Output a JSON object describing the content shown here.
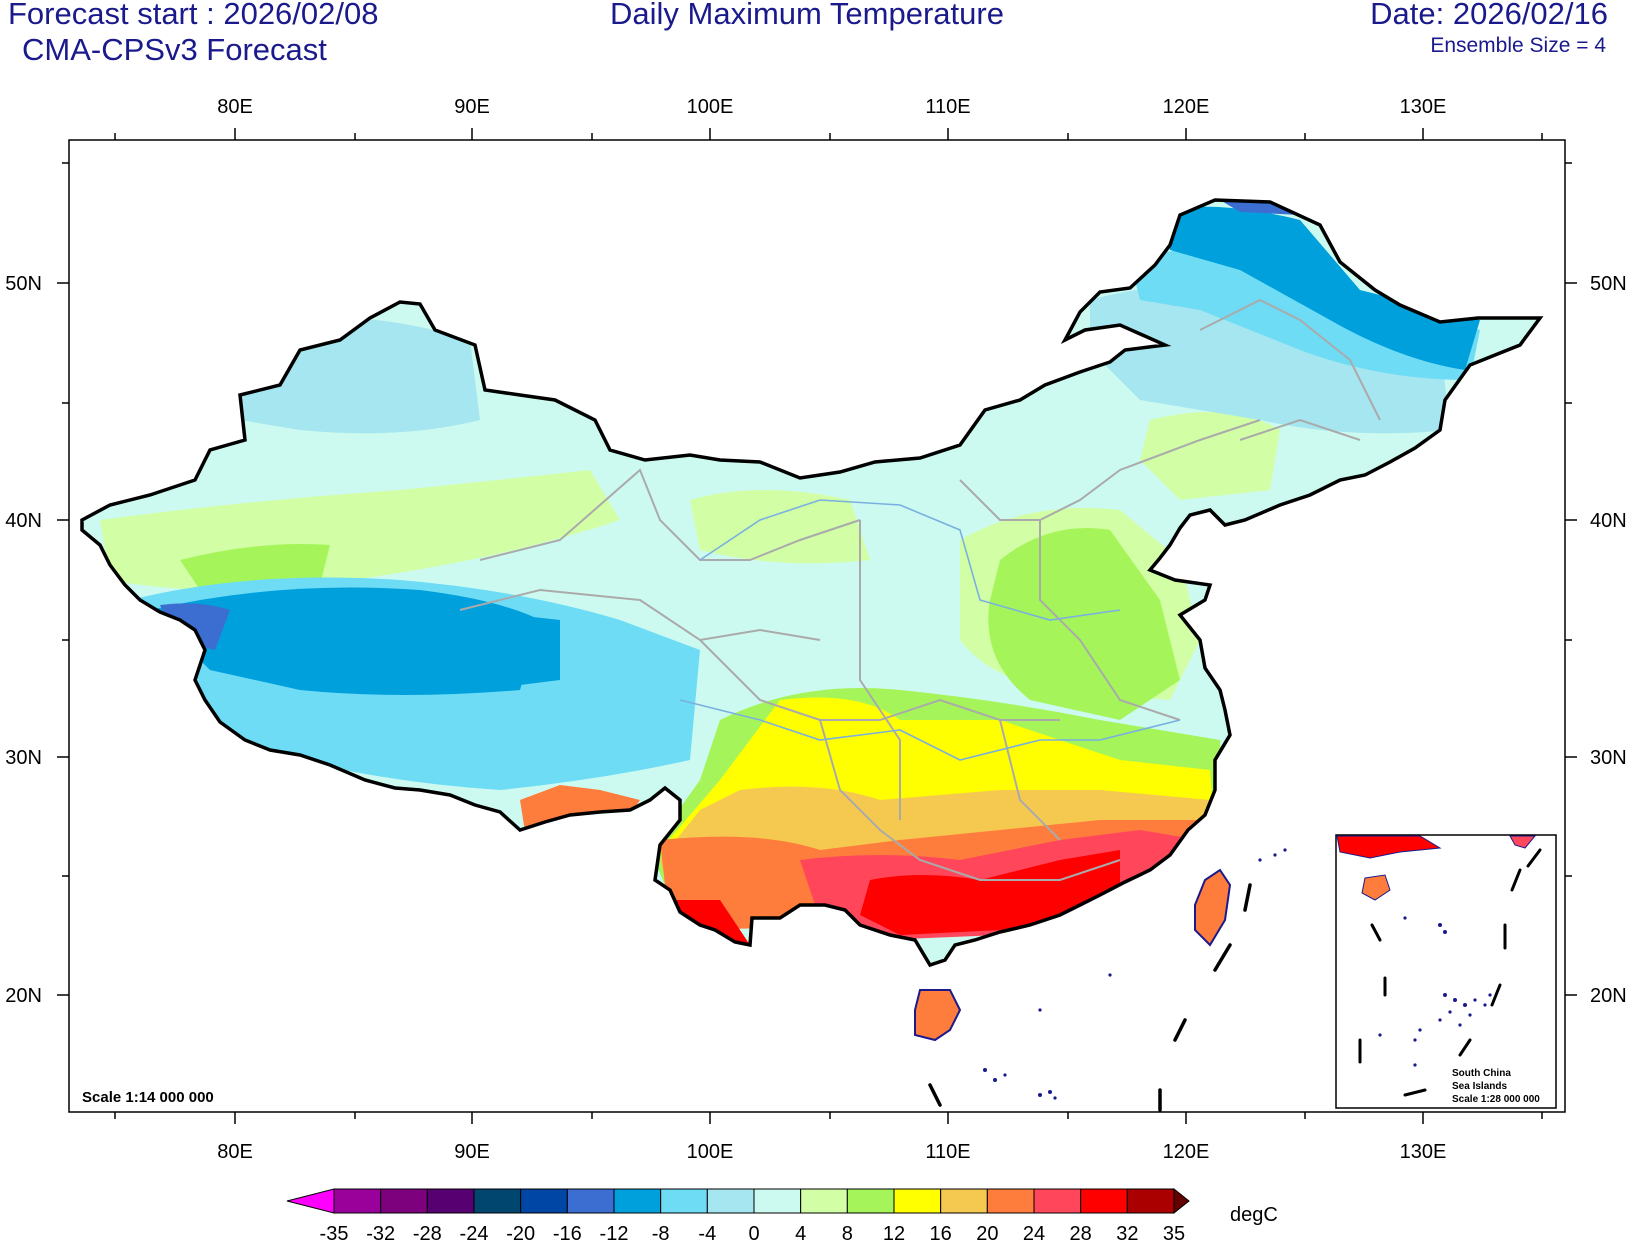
{
  "header": {
    "forecast_start": "Forecast start : 2026/02/08",
    "model": "CMA-CPSv3 Forecast",
    "title": "Daily Maximum Temperature",
    "date": "Date: 2026/02/16",
    "ensemble": "Ensemble Size = 4"
  },
  "axes": {
    "lon_labels": [
      "80E",
      "90E",
      "100E",
      "110E",
      "120E",
      "130E"
    ],
    "lat_labels": [
      "50N",
      "40N",
      "30N",
      "20N"
    ]
  },
  "scale_label": "Scale 1:14 000 000",
  "inset": {
    "line1": "South China",
    "line2": "Sea Islands",
    "line3": "Scale 1:28 000 000"
  },
  "colorbar": {
    "unit": "degC",
    "levels": [
      "-35",
      "-32",
      "-28",
      "-24",
      "-20",
      "-16",
      "-12",
      "-8",
      "-4",
      "0",
      "4",
      "8",
      "12",
      "16",
      "20",
      "24",
      "28",
      "32",
      "35"
    ],
    "colors": [
      "#9a009a",
      "#7d007d",
      "#560072",
      "#00466e",
      "#0046a5",
      "#3c6ed2",
      "#00a0dc",
      "#6edcf5",
      "#a5e6f0",
      "#cdfaf0",
      "#d2ffa5",
      "#a5f55a",
      "#ffff00",
      "#f5c850",
      "#ff7d3c",
      "#ff465a",
      "#ff0000",
      "#aa0000"
    ],
    "left_end_color": "#ff00ff",
    "right_end_color": "#640000"
  }
}
